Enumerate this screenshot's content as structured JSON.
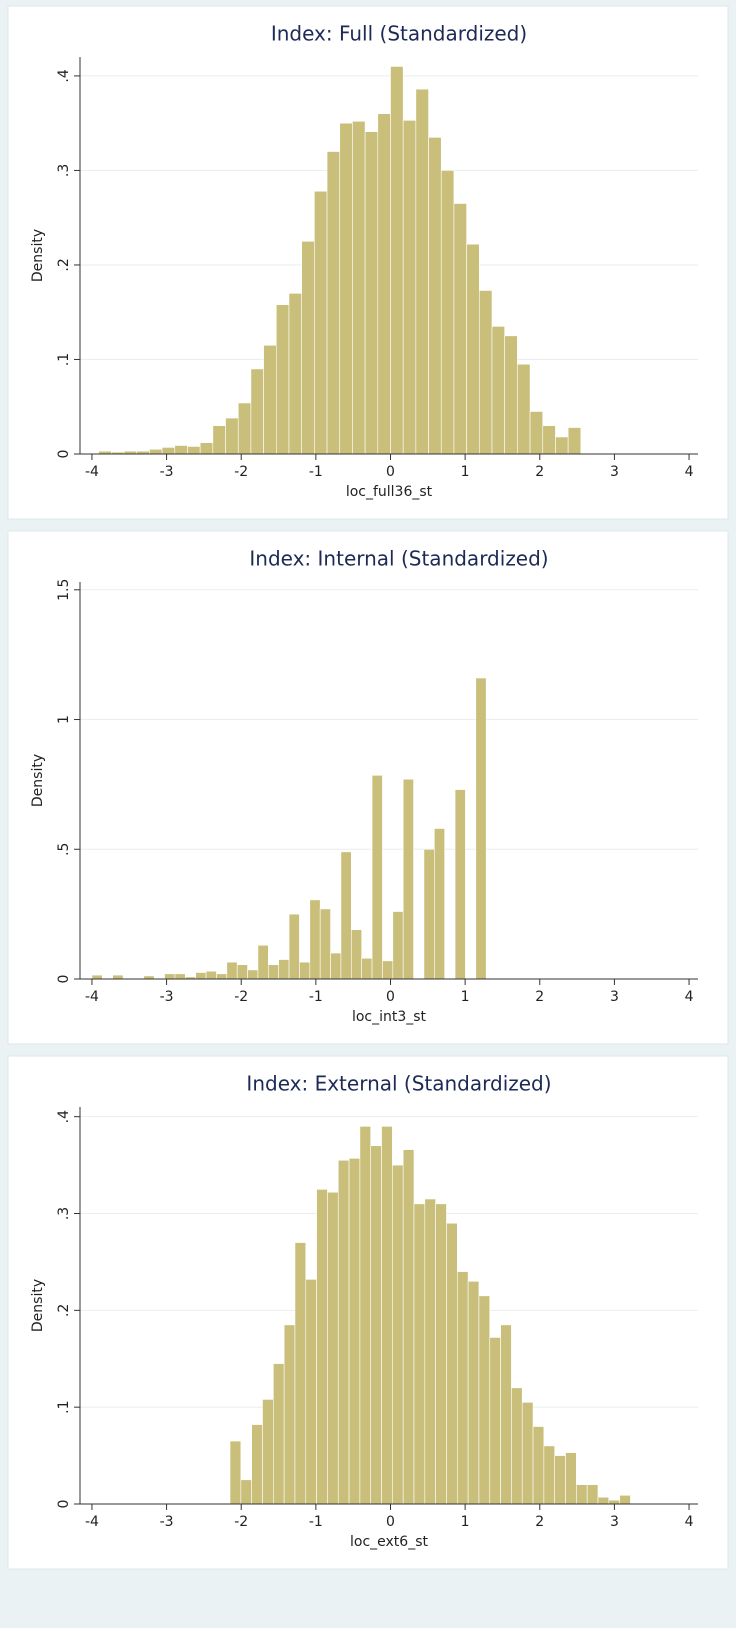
{
  "chart_data": [
    {
      "type": "histogram",
      "title": "Index: Full (Standardized)",
      "xlabel": "loc_full36_st",
      "ylabel": "Density",
      "color": "#c9bf7a",
      "bins": [
        -3.91,
        -3.74,
        -3.57,
        -3.4,
        -3.23,
        -3.06,
        -2.89,
        -2.72,
        -2.55,
        -2.38,
        -2.21,
        -2.04,
        -1.87,
        -1.7,
        -1.53,
        -1.36,
        -1.19,
        -1.02,
        -0.85,
        -0.68,
        -0.51,
        -0.34,
        -0.17,
        0,
        0.17,
        0.34,
        0.51,
        0.68,
        0.85,
        1.02,
        1.19,
        1.36,
        1.53,
        1.7,
        1.87,
        2.04,
        2.21,
        2.38,
        2.55
      ],
      "values": [
        0.003,
        0.002,
        0.003,
        0.003,
        0.005,
        0.007,
        0.009,
        0.008,
        0.012,
        0.03,
        0.038,
        0.054,
        0.09,
        0.115,
        0.158,
        0.17,
        0.225,
        0.278,
        0.32,
        0.35,
        0.352,
        0.341,
        0.36,
        0.41,
        0.353,
        0.386,
        0.335,
        0.3,
        0.265,
        0.222,
        0.173,
        0.135,
        0.125,
        0.095,
        0.045,
        0.03,
        0.018,
        0.028
      ],
      "xlim": [
        -4.16,
        4.12
      ],
      "xticks": [
        -4,
        -3,
        -2,
        -1,
        0,
        1,
        2,
        3,
        4
      ],
      "ylim": [
        0,
        0.42
      ],
      "yticks": [
        0,
        {
          "value": 0.1,
          "label": ".1"
        },
        {
          "value": 0.2,
          "label": ".2"
        },
        {
          "value": 0.3,
          "label": ".3"
        },
        {
          "value": 0.4,
          "label": ".4"
        }
      ],
      "grid": true
    },
    {
      "type": "histogram",
      "title": "Index: Internal (Standardized)",
      "xlabel": "loc_int3_st",
      "ylabel": "Density",
      "color": "#c9bf7a",
      "bins": [
        -4.0,
        -3.861,
        -3.722,
        -3.583,
        -3.444,
        -3.305,
        -3.166,
        -3.027,
        -2.888,
        -2.749,
        -2.61,
        -2.471,
        -2.332,
        -2.193,
        -2.054,
        -1.915,
        -1.776,
        -1.637,
        -1.498,
        -1.359,
        -1.22,
        -1.081,
        -0.942,
        -0.803,
        -0.664,
        -0.525,
        -0.386,
        -0.247,
        -0.108,
        0.031,
        0.17,
        0.309,
        0.448,
        0.587,
        0.726,
        0.865,
        1.004,
        1.143,
        1.282
      ],
      "values": [
        0.015,
        0,
        0.015,
        0,
        0,
        0.012,
        0,
        0.02,
        0.02,
        0.008,
        0.025,
        0.03,
        0.02,
        0.065,
        0.055,
        0.035,
        0.13,
        0.055,
        0.075,
        0.25,
        0.065,
        0.305,
        0.27,
        0.1,
        0.49,
        0.19,
        0.08,
        0.785,
        0.07,
        0.26,
        0.77,
        0,
        0.5,
        0.58,
        0,
        0.73,
        0,
        1.16
      ],
      "xlim": [
        -4.16,
        4.12
      ],
      "xticks": [
        -4,
        -3,
        -2,
        -1,
        0,
        1,
        2,
        3,
        4
      ],
      "ylim": [
        0,
        1.53
      ],
      "yticks": [
        0,
        {
          "value": 0.5,
          "label": ".5"
        },
        1,
        1.5
      ],
      "grid": true
    },
    {
      "type": "histogram",
      "title": "Index: External (Standardized)",
      "xlabel": "loc_ext6_st",
      "ylabel": "Density",
      "color": "#c9bf7a",
      "bins": [
        -2.15,
        -2.005,
        -1.86,
        -1.715,
        -1.57,
        -1.425,
        -1.28,
        -1.135,
        -0.99,
        -0.845,
        -0.7,
        -0.555,
        -0.41,
        -0.265,
        -0.12,
        0.025,
        0.17,
        0.315,
        0.46,
        0.605,
        0.75,
        0.895,
        1.04,
        1.185,
        1.33,
        1.475,
        1.62,
        1.765,
        1.91,
        2.055,
        2.2,
        2.345,
        2.49,
        2.635,
        2.78,
        2.925,
        3.07,
        3.215
      ],
      "values": [
        0.065,
        0.025,
        0.082,
        0.108,
        0.145,
        0.185,
        0.27,
        0.232,
        0.325,
        0.322,
        0.355,
        0.357,
        0.39,
        0.37,
        0.39,
        0.35,
        0.366,
        0.31,
        0.315,
        0.31,
        0.29,
        0.24,
        0.23,
        0.215,
        0.172,
        0.185,
        0.12,
        0.105,
        0.08,
        0.06,
        0.05,
        0.053,
        0.02,
        0.02,
        0.007,
        0.004,
        0.009
      ],
      "xlim": [
        -4.16,
        4.12
      ],
      "xticks": [
        -4,
        -3,
        -2,
        -1,
        0,
        1,
        2,
        3,
        4
      ],
      "ylim": [
        0,
        0.41
      ],
      "yticks": [
        0,
        {
          "value": 0.1,
          "label": ".1"
        },
        {
          "value": 0.2,
          "label": ".2"
        },
        {
          "value": 0.3,
          "label": ".3"
        },
        {
          "value": 0.4,
          "label": ".4"
        }
      ],
      "grid": true
    }
  ]
}
